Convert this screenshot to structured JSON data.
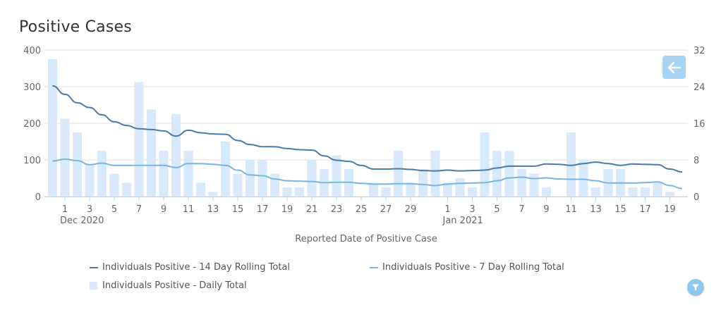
{
  "header": {
    "title": "Positive Cases"
  },
  "controls": {
    "back_icon": "arrow-left-icon",
    "filter_icon": "filter-funnel-icon"
  },
  "colors": {
    "bars": "#d7e9fb",
    "line_14day": "#4a7aa8",
    "line_7day": "#7ab4e0",
    "grid": "#e2e2e2",
    "button": "#a8d3f3",
    "filter_button": "#90c7ef"
  },
  "chart_data": {
    "type": "bar+line",
    "title": "Positive Cases",
    "xlabel": "Reported Date of Positive Case",
    "ylabel_left": "",
    "ylabel_right": "",
    "ylim_left": [
      0,
      400
    ],
    "ylim_right": [
      0,
      32
    ],
    "yticks_left": [
      "0",
      "100",
      "200",
      "300",
      "400"
    ],
    "yticks_right": [
      "0",
      "8",
      "16",
      "24",
      "32"
    ],
    "grid": true,
    "legend_position": "bottom",
    "x_tick_labels": [
      "1",
      "3",
      "5",
      "7",
      "9",
      "11",
      "13",
      "15",
      "17",
      "19",
      "21",
      "23",
      "25",
      "27",
      "29",
      "1",
      "3",
      "5",
      "7",
      "9",
      "11",
      "13",
      "15",
      "17",
      "19"
    ],
    "x_tick_day_index": [
      1,
      3,
      5,
      7,
      9,
      11,
      13,
      15,
      17,
      19,
      21,
      23,
      25,
      27,
      29,
      32,
      34,
      36,
      38,
      40,
      42,
      44,
      46,
      48,
      50
    ],
    "x_group_labels": [
      {
        "label": "Dec 2020",
        "day_index": 1
      },
      {
        "label": "Jan 2021",
        "day_index": 32
      }
    ],
    "x": [
      "2020-11-30",
      "2020-12-01",
      "2020-12-02",
      "2020-12-03",
      "2020-12-04",
      "2020-12-05",
      "2020-12-06",
      "2020-12-07",
      "2020-12-08",
      "2020-12-09",
      "2020-12-10",
      "2020-12-11",
      "2020-12-12",
      "2020-12-13",
      "2020-12-14",
      "2020-12-15",
      "2020-12-16",
      "2020-12-17",
      "2020-12-18",
      "2020-12-19",
      "2020-12-20",
      "2020-12-21",
      "2020-12-22",
      "2020-12-23",
      "2020-12-24",
      "2020-12-25",
      "2020-12-26",
      "2020-12-27",
      "2020-12-28",
      "2020-12-29",
      "2020-12-30",
      "2020-12-31",
      "2021-01-01",
      "2021-01-02",
      "2021-01-03",
      "2021-01-04",
      "2021-01-05",
      "2021-01-06",
      "2021-01-07",
      "2021-01-08",
      "2021-01-09",
      "2021-01-10",
      "2021-01-11",
      "2021-01-12",
      "2021-01-13",
      "2021-01-14",
      "2021-01-15",
      "2021-01-16",
      "2021-01-17",
      "2021-01-18",
      "2021-01-19",
      "2021-01-20"
    ],
    "series": [
      {
        "name": "Individuals Positive - 14 Day Rolling Total",
        "type": "line",
        "axis": "left",
        "values": [
          302,
          279,
          256,
          243,
          223,
          204,
          194,
          185,
          183,
          179,
          165,
          181,
          174,
          171,
          170,
          153,
          142,
          136,
          136,
          131,
          128,
          127,
          111,
          99,
          96,
          85,
          75,
          75,
          76,
          74,
          71,
          70,
          72,
          70,
          71,
          72,
          78,
          83,
          83,
          83,
          89,
          88,
          85,
          90,
          94,
          90,
          85,
          89,
          88,
          87,
          75,
          67
        ]
      },
      {
        "name": "Individuals Positive - 7 Day Rolling Total",
        "type": "line",
        "axis": "left",
        "values": [
          97,
          102,
          98,
          87,
          91,
          85,
          85,
          85,
          85,
          85,
          79,
          90,
          90,
          88,
          85,
          72,
          59,
          57,
          48,
          43,
          42,
          41,
          38,
          39,
          39,
          36,
          34,
          34,
          35,
          35,
          33,
          30,
          34,
          36,
          37,
          38,
          43,
          51,
          53,
          49,
          51,
          48,
          47,
          47,
          43,
          37,
          37,
          37,
          38,
          40,
          30,
          22
        ]
      },
      {
        "name": "Individuals Positive - Daily Total",
        "type": "bar",
        "axis": "right",
        "values": [
          30,
          17,
          14,
          7,
          10,
          5,
          3,
          25,
          19,
          10,
          18,
          10,
          3,
          1,
          12,
          5,
          8,
          8,
          5,
          2,
          2,
          8,
          6,
          9,
          6,
          0,
          3,
          2,
          10,
          3,
          6,
          10,
          3,
          4,
          2,
          14,
          10,
          10,
          6,
          5,
          2,
          0,
          14,
          8,
          2,
          6,
          6,
          2,
          2,
          3,
          1,
          0
        ]
      }
    ]
  },
  "legend": {
    "items": [
      {
        "label": "Individuals Positive - 14 Day Rolling Total"
      },
      {
        "label": "Individuals Positive - 7 Day Rolling Total"
      },
      {
        "label": "Individuals Positive - Daily Total"
      }
    ]
  }
}
